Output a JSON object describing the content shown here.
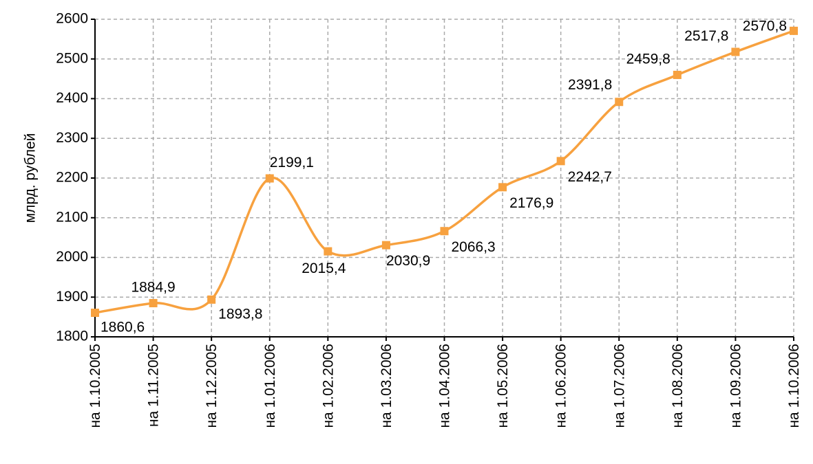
{
  "chart_data": {
    "type": "line",
    "y_label": "млрд. рублей",
    "categories": [
      "на 1.10.2005",
      "на 1.11.2005",
      "на 1.12.2005",
      "на 1.01.2006",
      "на 1.02.2006",
      "на 1.03.2006",
      "на 1.04.2006",
      "на 1.05.2006",
      "на 1.06.2006",
      "на 1.07.2006",
      "на 1.08.2006",
      "на 1.09.2006",
      "на 1.10.2006"
    ],
    "series": [
      {
        "name": "млрд. рублей",
        "color": "#f7a13f",
        "values": [
          1860.6,
          1884.9,
          1893.8,
          2199.1,
          2015.4,
          2030.9,
          2066.3,
          2176.9,
          2242.7,
          2391.8,
          2459.8,
          2517.8,
          2570.8
        ],
        "value_labels": [
          "1860,6",
          "1884,9",
          "1893,8",
          "2199,1",
          "2015,4",
          "2030,9",
          "2066,3",
          "2176,9",
          "2242,7",
          "2391,8",
          "2459,8",
          "2517,8",
          "2570,8"
        ]
      }
    ],
    "ylim": [
      1800,
      2600
    ],
    "yticks": [
      1800,
      1900,
      2000,
      2100,
      2200,
      2300,
      2400,
      2500,
      2600
    ],
    "grid": true
  }
}
